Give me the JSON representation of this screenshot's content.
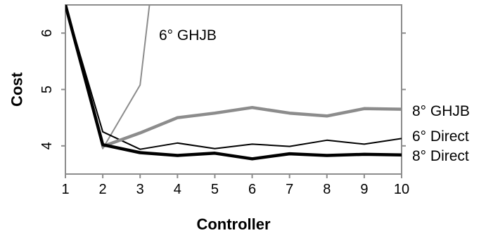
{
  "chart_data": {
    "type": "line",
    "title": "",
    "xlabel": "Controller",
    "ylabel": "Cost",
    "xlim": [
      1,
      10
    ],
    "ylim": [
      3.5,
      6.5
    ],
    "xticks": [
      "1",
      "2",
      "3",
      "4",
      "5",
      "6",
      "7",
      "8",
      "9",
      "10"
    ],
    "yticks": [
      "4",
      "5",
      "6"
    ],
    "grid": false,
    "legend": "inline-labels",
    "series": [
      {
        "name": "6° GHJB",
        "color": "#8c8c8c",
        "weight": "thin",
        "x": [
          1,
          2,
          3,
          3.25
        ],
        "y": [
          6.5,
          3.95,
          5.08,
          6.5
        ]
      },
      {
        "name": "8° GHJB",
        "color": "#8c8c8c",
        "weight": "thick",
        "x": [
          2,
          3,
          4,
          5,
          6,
          7,
          8,
          9,
          10
        ],
        "y": [
          3.99,
          4.23,
          4.5,
          4.58,
          4.68,
          4.58,
          4.53,
          4.66,
          4.65
        ]
      },
      {
        "name": "6° Direct",
        "color": "#000000",
        "weight": "thin",
        "x": [
          1,
          2,
          3,
          4,
          5,
          6,
          7,
          8,
          9,
          10
        ],
        "y": [
          6.5,
          4.25,
          3.94,
          4.05,
          3.95,
          4.03,
          3.99,
          4.1,
          4.03,
          4.13
        ]
      },
      {
        "name": "8° Direct",
        "color": "#000000",
        "weight": "thick",
        "x": [
          1,
          2,
          3,
          4,
          5,
          6,
          7,
          8,
          9,
          10
        ],
        "y": [
          6.5,
          4.02,
          3.88,
          3.83,
          3.87,
          3.77,
          3.86,
          3.83,
          3.85,
          3.84
        ]
      }
    ]
  }
}
